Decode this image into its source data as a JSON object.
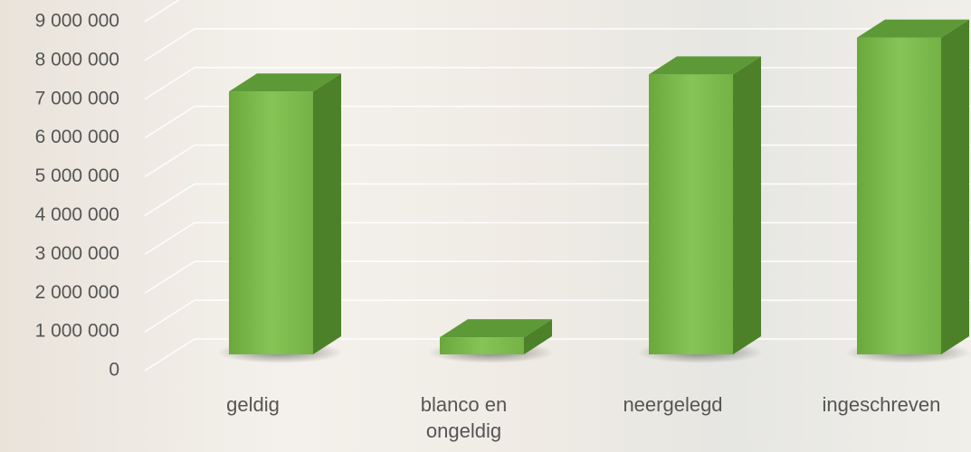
{
  "chart_data": {
    "type": "bar3d",
    "categories": [
      "geldig",
      "blanco en ongeldig",
      "neergelegd",
      "ingeschreven"
    ],
    "values": [
      6780000,
      440000,
      7220000,
      8170000
    ],
    "color": "#7cbb4e",
    "ylim": [
      0,
      9000000
    ],
    "yticks": [
      0,
      {
        "value": 1000000,
        "label": "1 000 000"
      },
      {
        "value": 2000000,
        "label": "2 000 000"
      },
      {
        "value": 3000000,
        "label": "3 000 000"
      },
      {
        "value": 4000000,
        "label": "4 000 000"
      },
      {
        "value": 5000000,
        "label": "5 000 000"
      },
      {
        "value": 6000000,
        "label": "6 000 000"
      },
      {
        "value": 7000000,
        "label": "7 000 000"
      },
      {
        "value": 8000000,
        "label": "8 000 000"
      },
      {
        "value": 9000000,
        "label": "9 000 000"
      }
    ],
    "grid": true
  }
}
